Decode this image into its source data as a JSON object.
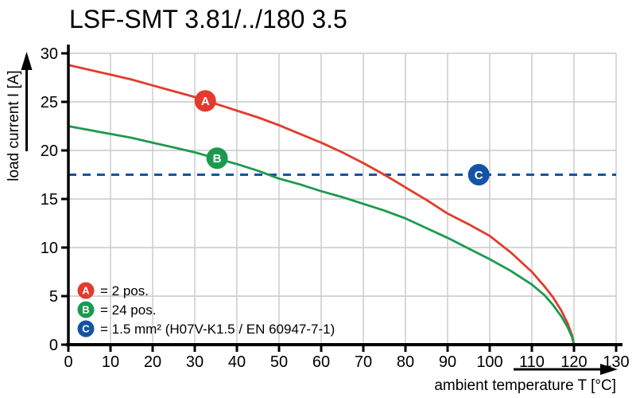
{
  "chart_data": {
    "type": "line",
    "title": "LSF-SMT 3.81/../180 3.5",
    "xlabel": "ambient temperature T [°C]",
    "ylabel": "load current I [A]",
    "xlim": [
      0,
      130
    ],
    "ylim": [
      0,
      30
    ],
    "xticks": [
      0,
      10,
      20,
      30,
      40,
      50,
      60,
      70,
      80,
      90,
      100,
      110,
      120,
      130
    ],
    "yticks": [
      0,
      5,
      10,
      15,
      20,
      25,
      30
    ],
    "grid": true,
    "legend_position": "bottom-left",
    "colors": {
      "red": "#e23b2e",
      "green": "#1b9a4f",
      "blue": "#1553a5",
      "grid": "#c9c9c9",
      "axis": "#000000"
    },
    "series": [
      {
        "id": "A",
        "label": "= 2 pos.",
        "type": "curve",
        "color_key": "red",
        "points": [
          [
            0,
            28.8
          ],
          [
            5,
            28.3
          ],
          [
            10,
            27.8
          ],
          [
            15,
            27.3
          ],
          [
            20,
            26.7
          ],
          [
            25,
            26.1
          ],
          [
            30,
            25.5
          ],
          [
            35,
            24.8
          ],
          [
            40,
            24.1
          ],
          [
            45,
            23.4
          ],
          [
            50,
            22.6
          ],
          [
            55,
            21.7
          ],
          [
            60,
            20.8
          ],
          [
            65,
            19.8
          ],
          [
            70,
            18.7
          ],
          [
            75,
            17.5
          ],
          [
            80,
            16.2
          ],
          [
            85,
            14.9
          ],
          [
            90,
            13.5
          ],
          [
            95,
            12.4
          ],
          [
            100,
            11.2
          ],
          [
            105,
            9.5
          ],
          [
            110,
            7.5
          ],
          [
            113,
            6.0
          ],
          [
            115,
            4.9
          ],
          [
            117,
            3.5
          ],
          [
            118.5,
            2.2
          ],
          [
            119.5,
            1.0
          ],
          [
            120,
            0
          ]
        ]
      },
      {
        "id": "B",
        "label": "= 24 pos.",
        "type": "curve",
        "color_key": "green",
        "points": [
          [
            0,
            22.5
          ],
          [
            5,
            22.1
          ],
          [
            10,
            21.7
          ],
          [
            15,
            21.3
          ],
          [
            20,
            20.8
          ],
          [
            25,
            20.3
          ],
          [
            30,
            19.8
          ],
          [
            35,
            19.2
          ],
          [
            40,
            18.6
          ],
          [
            45,
            17.9
          ],
          [
            50,
            17.1
          ],
          [
            55,
            16.5
          ],
          [
            60,
            15.8
          ],
          [
            65,
            15.2
          ],
          [
            70,
            14.5
          ],
          [
            75,
            13.8
          ],
          [
            80,
            13.0
          ],
          [
            85,
            12.0
          ],
          [
            90,
            11.0
          ],
          [
            95,
            9.9
          ],
          [
            100,
            8.8
          ],
          [
            105,
            7.6
          ],
          [
            110,
            6.2
          ],
          [
            113,
            5.1
          ],
          [
            115,
            4.1
          ],
          [
            117,
            2.9
          ],
          [
            118.5,
            1.8
          ],
          [
            119.5,
            0.8
          ],
          [
            120,
            0
          ]
        ]
      },
      {
        "id": "C",
        "label": "= 1.5 mm² (H07V-K1.5 / EN 60947-7-1)",
        "type": "hline-dashed",
        "color_key": "blue",
        "value": 17.5
      }
    ],
    "markers": [
      {
        "id": "A",
        "x": 32.5,
        "y": 25.1,
        "color_key": "red"
      },
      {
        "id": "B",
        "x": 35.3,
        "y": 19.2,
        "color_key": "green"
      },
      {
        "id": "C",
        "x": 97.4,
        "y": 17.5,
        "color_key": "blue"
      }
    ]
  }
}
